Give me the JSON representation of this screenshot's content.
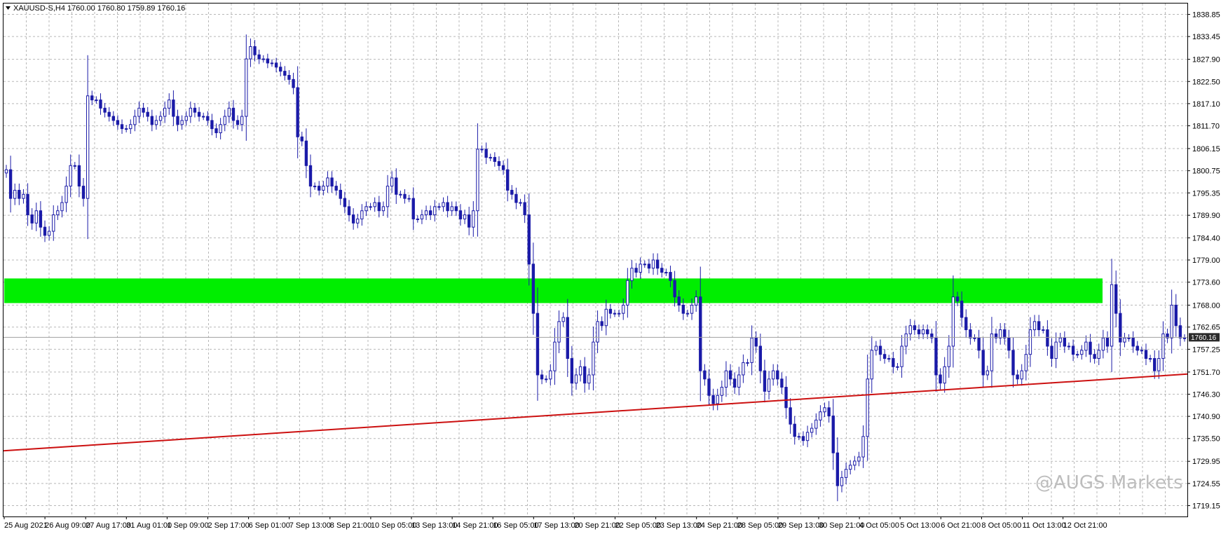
{
  "header": {
    "arrow_icon": "triangle-down-icon",
    "text": "XAUUSD-S,H4  1760.00 1760.80 1759.89 1760.16"
  },
  "watermark": "@AUGS Markets",
  "current_price_label": "1760.16",
  "colors": {
    "bull_body": "#ffffff",
    "bear_body": "#1a1aa8",
    "wick": "#1a1aa8",
    "grid": "#b8b8b8",
    "zone": "#00ee00",
    "trendline": "#cc1010",
    "price_tag_bg": "#2a2a2a"
  },
  "chart_data": {
    "type": "candlestick",
    "symbol": "XAUUSD-S",
    "timeframe": "H4",
    "ylim": [
      1716.5,
      1841.5
    ],
    "y_ticks": [
      "1838.85",
      "1833.45",
      "1827.90",
      "1822.50",
      "1817.10",
      "1811.70",
      "1806.15",
      "1800.75",
      "1795.35",
      "1789.90",
      "1784.40",
      "1779.00",
      "1773.60",
      "1768.00",
      "1762.65",
      "1757.25",
      "1751.70",
      "1746.30",
      "1740.90",
      "1735.50",
      "1729.95",
      "1724.55",
      "1719.15"
    ],
    "x_ticks": [
      "25 Aug 2021",
      "26 Aug 09:00",
      "27 Aug 17:00",
      "31 Aug 01:00",
      "1 Sep 09:00",
      "2 Sep 17:00",
      "6 Sep 01:00",
      "7 Sep 13:00",
      "8 Sep 21:00",
      "10 Sep 05:00",
      "13 Sep 13:00",
      "14 Sep 21:00",
      "16 Sep 05:00",
      "17 Sep 13:00",
      "20 Sep 21:00",
      "22 Sep 05:00",
      "23 Sep 13:00",
      "24 Sep 21:00",
      "28 Sep 05:00",
      "29 Sep 13:00",
      "30 Sep 21:00",
      "4 Oct 05:00",
      "5 Oct 13:00",
      "6 Oct 21:00",
      "8 Oct 05:00",
      "11 Oct 13:00",
      "12 Oct 21:00"
    ],
    "resistance_zone": [
      1768.5,
      1774.5
    ],
    "trendline": {
      "start": 1732.5,
      "end": 1751.2
    },
    "current_price": 1760.16,
    "closes": [
      1801,
      1794,
      1796,
      1794,
      1795,
      1790,
      1788,
      1791,
      1787,
      1785,
      1786,
      1790,
      1791,
      1793,
      1797,
      1802,
      1802,
      1797,
      1794,
      1819,
      1818,
      1818,
      1816,
      1815,
      1814,
      1813,
      1812,
      1811,
      1811,
      1812,
      1814,
      1816,
      1815,
      1814,
      1812,
      1813,
      1814,
      1816,
      1818,
      1814,
      1812,
      1813,
      1814,
      1816,
      1815,
      1814,
      1814,
      1813,
      1811,
      1810,
      1812,
      1814,
      1816,
      1813,
      1812,
      1814,
      1828,
      1831,
      1829,
      1828,
      1828,
      1827,
      1827,
      1826,
      1825,
      1824,
      1823,
      1821,
      1809,
      1808,
      1802,
      1797,
      1797,
      1796,
      1797,
      1799,
      1797,
      1796,
      1794,
      1792,
      1790,
      1788,
      1789,
      1791,
      1792,
      1792,
      1793,
      1791,
      1792,
      1797,
      1799,
      1795,
      1795,
      1794,
      1794,
      1789,
      1789,
      1790,
      1791,
      1790,
      1792,
      1792,
      1793,
      1791,
      1792,
      1791,
      1789,
      1790,
      1787,
      1791,
      1806,
      1806,
      1804,
      1804,
      1803,
      1802,
      1801,
      1796,
      1795,
      1793,
      1793,
      1790,
      1778,
      1766,
      1751,
      1750,
      1750,
      1752,
      1759,
      1764,
      1765,
      1755,
      1749,
      1751,
      1753,
      1749,
      1751,
      1759,
      1764,
      1763,
      1767,
      1766,
      1766,
      1766,
      1768,
      1774,
      1777,
      1776,
      1778,
      1778,
      1777,
      1779,
      1777,
      1776,
      1776,
      1774,
      1770,
      1768,
      1766,
      1766,
      1768,
      1770,
      1752,
      1750,
      1746,
      1744,
      1746,
      1748,
      1752,
      1750,
      1748,
      1751,
      1754,
      1754,
      1760,
      1758,
      1752,
      1747,
      1750,
      1752,
      1750,
      1748,
      1743,
      1739,
      1736,
      1736,
      1735,
      1737,
      1738,
      1740,
      1742,
      1743,
      1741,
      1732,
      1724,
      1726,
      1728,
      1729,
      1730,
      1731,
      1736,
      1750,
      1757,
      1758,
      1756,
      1755,
      1755,
      1753,
      1753,
      1758,
      1761,
      1763,
      1762,
      1761,
      1762,
      1761,
      1760,
      1751,
      1749,
      1753,
      1758,
      1770,
      1769,
      1765,
      1762,
      1760,
      1760,
      1757,
      1751,
      1752,
      1761,
      1760,
      1762,
      1760,
      1757,
      1751,
      1750,
      1752,
      1756,
      1762,
      1764,
      1762,
      1762,
      1758,
      1755,
      1759,
      1760,
      1758,
      1758,
      1756,
      1756,
      1757,
      1759,
      1756,
      1755,
      1757,
      1760,
      1758,
      1773,
      1766,
      1759,
      1760,
      1760,
      1758,
      1757,
      1757,
      1755,
      1755,
      1752,
      1755,
      1761,
      1760,
      1768,
      1763,
      1760,
      1760
    ]
  }
}
